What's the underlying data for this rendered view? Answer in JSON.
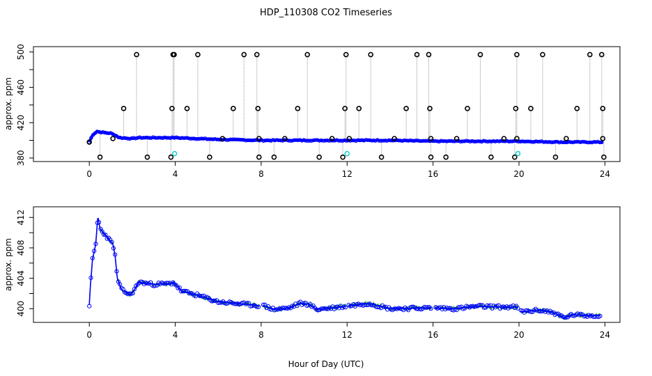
{
  "title": "HDP_110308  CO2 Timeseries",
  "xlabel": "Hour of Day (UTC)",
  "colors": {
    "outlier": "#000000",
    "flag": "#00cccc",
    "fitted": "#0000ff",
    "raw": "#00aa00",
    "spike_line": "#999999"
  },
  "chart_data": [
    {
      "type": "scatter",
      "name": "top-panel",
      "ylabel": "approx. ppm",
      "xlim": [
        -2.6,
        24.7
      ],
      "ylim": [
        376,
        506
      ],
      "xticks": [
        0,
        4,
        8,
        12,
        16,
        20,
        24
      ],
      "yticks": [
        380,
        420,
        460,
        500
      ],
      "ytick_minor": [
        400,
        440,
        480
      ],
      "baseline_profile": [
        [
          0,
          398
        ],
        [
          0.15,
          406
        ],
        [
          0.35,
          410
        ],
        [
          0.6,
          409
        ],
        [
          1.0,
          408
        ],
        [
          1.2,
          406
        ],
        [
          1.4,
          403
        ],
        [
          2.0,
          402
        ],
        [
          2.3,
          403
        ],
        [
          3.8,
          403
        ],
        [
          4.0,
          403
        ],
        [
          6,
          401
        ],
        [
          8,
          400
        ],
        [
          10,
          400
        ],
        [
          12,
          400
        ],
        [
          14,
          400
        ],
        [
          16,
          399
        ],
        [
          20,
          399
        ],
        [
          22,
          398
        ],
        [
          24,
          398
        ]
      ],
      "outliers_high": [
        2.2,
        3.9,
        3.95,
        5.05,
        7.2,
        7.8,
        10.15,
        11.95,
        13.1,
        15.25,
        15.8,
        18.2,
        19.9,
        21.1,
        23.3,
        23.85
      ],
      "outliers_mid": [
        1.6,
        3.85,
        4.55,
        6.7,
        7.85,
        9.7,
        11.9,
        12.55,
        14.75,
        15.85,
        17.6,
        19.85,
        20.55,
        22.7,
        23.9
      ],
      "outliers_low": [
        0.5,
        2.7,
        3.8,
        5.6,
        7.9,
        8.6,
        10.7,
        11.8,
        13.6,
        15.9,
        16.6,
        18.7,
        19.8,
        21.7,
        23.95
      ],
      "outliers_near": [
        1.1,
        6.2,
        7.9,
        9.1,
        11.3,
        12.1,
        14.2,
        15.9,
        17.1,
        19.3,
        19.9,
        22.2,
        23.9
      ],
      "flag_points": [
        [
          3.97,
          385
        ],
        [
          12.0,
          385
        ],
        [
          19.95,
          385
        ]
      ],
      "high_value": 497,
      "mid_value": 436,
      "low_value": 381,
      "near_value": 402
    },
    {
      "type": "line",
      "name": "bottom-panel",
      "ylabel": "approx. ppm",
      "xlim": [
        -2.6,
        24.7
      ],
      "ylim": [
        398.2,
        413.4
      ],
      "xticks": [
        0,
        4,
        8,
        12,
        16,
        20,
        24
      ],
      "yticks": [
        400,
        404,
        408,
        412
      ],
      "ytick_minor": [
        402,
        406,
        410
      ],
      "gaps": [
        [
          7.95,
          8.05
        ],
        [
          11.95,
          12.05
        ],
        [
          15.95,
          16.05
        ],
        [
          19.95,
          20.05
        ]
      ],
      "profile": [
        [
          0,
          400.5
        ],
        [
          0.05,
          403
        ],
        [
          0.15,
          406.5
        ],
        [
          0.3,
          408.5
        ],
        [
          0.4,
          412.2
        ],
        [
          0.5,
          410.5
        ],
        [
          0.8,
          409.5
        ],
        [
          1.1,
          408.5
        ],
        [
          1.2,
          407
        ],
        [
          1.3,
          404
        ],
        [
          1.5,
          402.5
        ],
        [
          1.9,
          401.8
        ],
        [
          2.1,
          402.5
        ],
        [
          2.3,
          403.5
        ],
        [
          3.0,
          403.2
        ],
        [
          3.8,
          403.3
        ],
        [
          3.9,
          403.5
        ],
        [
          4.3,
          402.3
        ],
        [
          5.0,
          401.8
        ],
        [
          6.0,
          400.9
        ],
        [
          7.9,
          400.4
        ],
        [
          8.1,
          400.4
        ],
        [
          8.6,
          399.9
        ],
        [
          9.3,
          400.1
        ],
        [
          9.8,
          400.7
        ],
        [
          10.2,
          400.6
        ],
        [
          10.6,
          399.9
        ],
        [
          11.9,
          400.3
        ],
        [
          12.1,
          400.4
        ],
        [
          13.0,
          400.7
        ],
        [
          14.0,
          400.0
        ],
        [
          15.9,
          400.1
        ],
        [
          16.1,
          400.1
        ],
        [
          17.0,
          400.0
        ],
        [
          18.0,
          400.3
        ],
        [
          19.9,
          400.2
        ],
        [
          20.1,
          399.6
        ],
        [
          21.0,
          399.8
        ],
        [
          21.6,
          399.5
        ],
        [
          22.1,
          398.8
        ],
        [
          22.5,
          399.2
        ],
        [
          23.0,
          399.1
        ],
        [
          23.8,
          399.1
        ]
      ]
    }
  ],
  "tick_labels": {
    "x": [
      "0",
      "4",
      "8",
      "12",
      "16",
      "20",
      "24"
    ],
    "top_y": [
      "380",
      "420",
      "460",
      "500"
    ],
    "bottom_y": [
      "400",
      "404",
      "408",
      "412"
    ]
  }
}
